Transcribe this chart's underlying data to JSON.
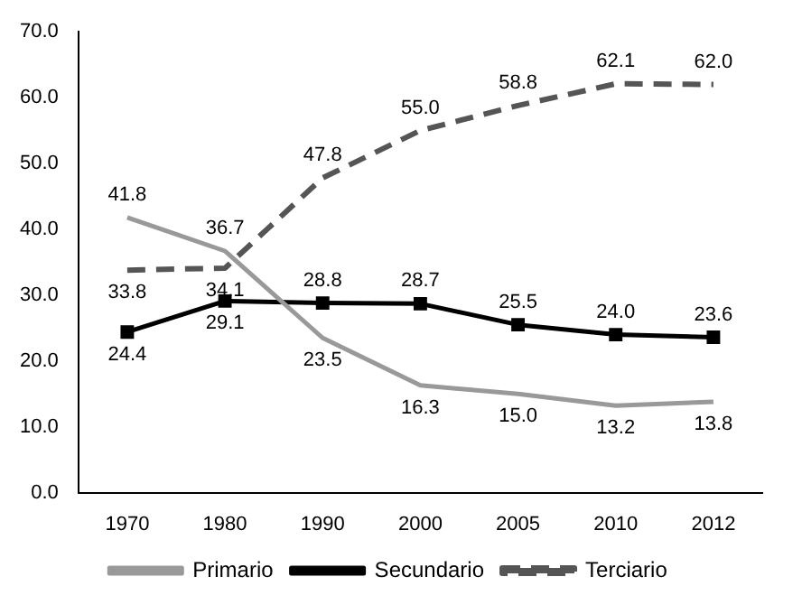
{
  "chart_data": {
    "type": "line",
    "categories": [
      "1970",
      "1980",
      "1990",
      "2000",
      "2005",
      "2010",
      "2012"
    ],
    "series": [
      {
        "name": "Primario",
        "color": "#999999",
        "line_style": "solid",
        "marker": "none",
        "values": [
          41.8,
          36.7,
          23.5,
          16.3,
          15.0,
          13.2,
          13.8
        ],
        "value_labels": [
          "41.8",
          "36.7",
          "23.5",
          "16.3",
          "15.0",
          "13.2",
          "13.8"
        ]
      },
      {
        "name": "Secundario",
        "color": "#000000",
        "line_style": "solid",
        "marker": "square",
        "values": [
          24.4,
          29.1,
          28.8,
          28.7,
          25.5,
          24.0,
          23.6
        ],
        "value_labels": [
          "24.4",
          "29.1",
          "28.8",
          "28.7",
          "25.5",
          "24.0",
          "23.6"
        ]
      },
      {
        "name": "Terciario",
        "color": "#555555",
        "line_style": "dashed",
        "marker": "none",
        "values": [
          33.8,
          34.1,
          47.8,
          55.0,
          58.8,
          62.1,
          62.0
        ],
        "value_labels": [
          "33.8",
          "34.1",
          "47.8",
          "55.0",
          "58.8",
          "62.1",
          "62.0"
        ]
      }
    ],
    "ylim": [
      0,
      70
    ],
    "yticks": [
      {
        "value": 0,
        "label": "0.0"
      },
      {
        "value": 10,
        "label": "10.0"
      },
      {
        "value": 20,
        "label": "20.0"
      },
      {
        "value": 30,
        "label": "30.0"
      },
      {
        "value": 40,
        "label": "40.0"
      },
      {
        "value": 50,
        "label": "50.0"
      },
      {
        "value": 60,
        "label": "60.0"
      },
      {
        "value": 70,
        "label": "70.0"
      }
    ],
    "grid": false,
    "legend": "bottom"
  }
}
